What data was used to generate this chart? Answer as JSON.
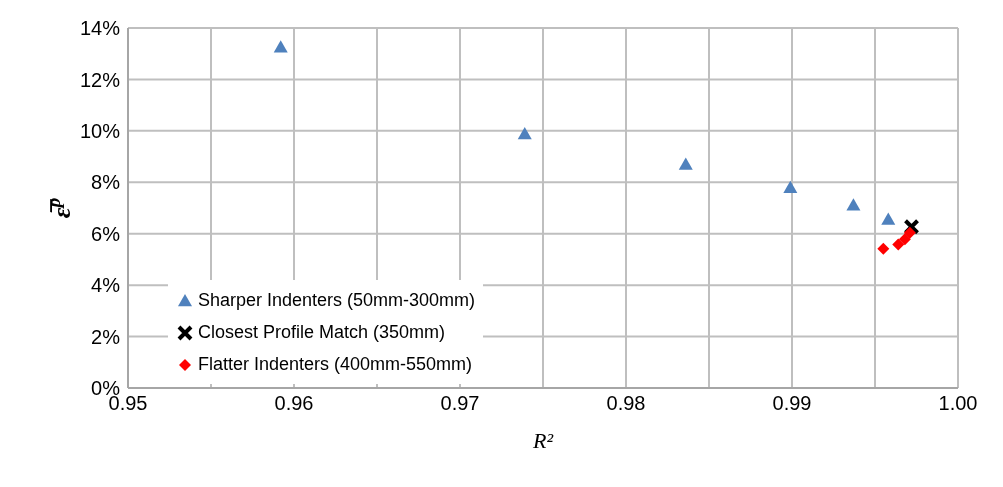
{
  "chart_data": {
    "type": "scatter",
    "xlabel": "R²",
    "ylabel": "ε̅$^{p}$",
    "xlim": [
      0.95,
      1.0
    ],
    "xticks": [
      {
        "value": 0.95,
        "label": "0.95"
      },
      {
        "value": 0.955,
        "label": null
      },
      {
        "value": 0.96,
        "label": "0.96"
      },
      {
        "value": 0.965,
        "label": null
      },
      {
        "value": 0.97,
        "label": "0.97"
      },
      {
        "value": 0.975,
        "label": null
      },
      {
        "value": 0.98,
        "label": "0.98"
      },
      {
        "value": 0.985,
        "label": null
      },
      {
        "value": 0.99,
        "label": "0.99"
      },
      {
        "value": 0.995,
        "label": null
      },
      {
        "value": 1.0,
        "label": "1.00"
      }
    ],
    "ylim": [
      0,
      14
    ],
    "yticks": [
      {
        "value": 0,
        "label": "0%"
      },
      {
        "value": 2,
        "label": "2%"
      },
      {
        "value": 4,
        "label": "4%"
      },
      {
        "value": 6,
        "label": "6%"
      },
      {
        "value": 8,
        "label": "8%"
      },
      {
        "value": 10,
        "label": "10%"
      },
      {
        "value": 12,
        "label": "12%"
      },
      {
        "value": 14,
        "label": "14%"
      }
    ],
    "grid": true,
    "legend": "bottom left",
    "series": [
      {
        "name": "Sharper Indenters (50mm-300mm)",
        "color": "#4f81bd",
        "marker": "triangle",
        "x": [
          0.9592,
          0.9739,
          0.9836,
          0.9899,
          0.9937,
          0.9958
        ],
        "values": [
          13.25,
          9.88,
          8.69,
          7.79,
          7.11,
          6.55
        ]
      },
      {
        "name": "Closest Profile Match (350mm)",
        "color": "#000000",
        "marker": "cross",
        "x": [
          0.9972
        ],
        "values": [
          6.27
        ]
      },
      {
        "name": "Flatter Indenters (400mm-550mm)",
        "color": "#ff0000",
        "marker": "diamond",
        "x": [
          0.9955,
          0.9964,
          0.9968,
          0.9971
        ],
        "values": [
          5.42,
          5.58,
          5.78,
          6.04
        ]
      }
    ]
  }
}
